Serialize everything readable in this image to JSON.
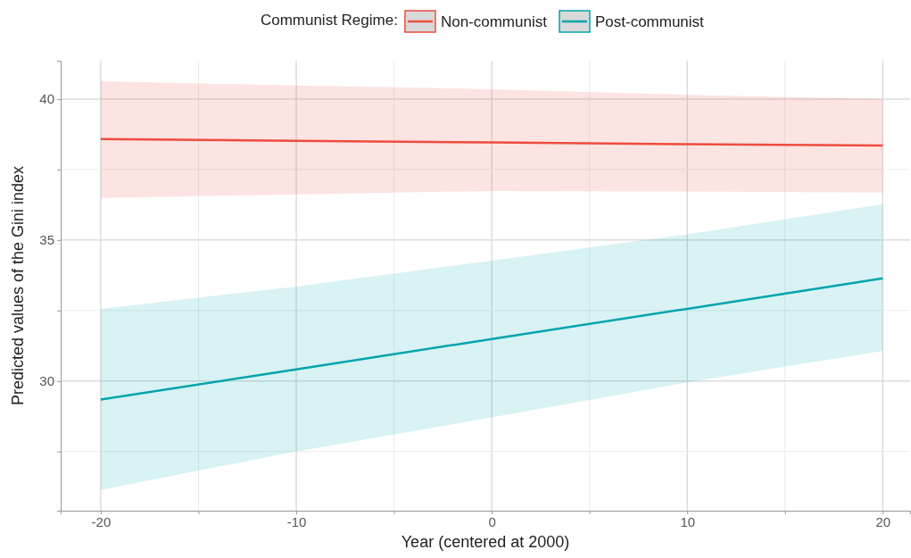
{
  "chart_data": {
    "type": "line",
    "xlabel": "Year (centered at 2000)",
    "ylabel": "Predicted values of the Gini index",
    "legend_title": "Communist Regime:",
    "legend": "top",
    "grid": true,
    "marker": "none",
    "line_style": "solid",
    "xlim": [
      -22.05,
      21.4
    ],
    "ylim": [
      25.4,
      41.36
    ],
    "xticks": [
      -20,
      {
        "value": -15,
        "label": null
      },
      -10,
      {
        "value": -5,
        "label": null
      },
      0,
      {
        "value": 5,
        "label": null
      },
      10,
      {
        "value": 15,
        "label": null
      },
      20
    ],
    "yticks": [
      {
        "value": 27.5,
        "label": null
      },
      30,
      {
        "value": 32.5,
        "label": null
      },
      35,
      {
        "value": 37.5,
        "label": null
      },
      40
    ],
    "x": [
      -20,
      -10,
      0,
      10,
      20
    ],
    "series": [
      {
        "name": "Non-communist",
        "color": "#ee4c3f",
        "values": [
          38.58,
          38.52,
          38.46,
          38.4,
          38.35
        ],
        "lower": [
          36.49,
          36.62,
          36.74,
          36.72,
          36.68
        ],
        "upper": [
          40.63,
          40.48,
          40.35,
          40.15,
          40.0
        ]
      },
      {
        "name": "Post-communist",
        "color": "#00a5ad",
        "values": [
          29.34,
          30.41,
          31.49,
          32.56,
          33.64
        ],
        "lower": [
          26.14,
          27.5,
          28.71,
          29.95,
          31.07
        ],
        "upper": [
          32.56,
          33.35,
          34.27,
          35.2,
          36.27
        ]
      }
    ]
  }
}
